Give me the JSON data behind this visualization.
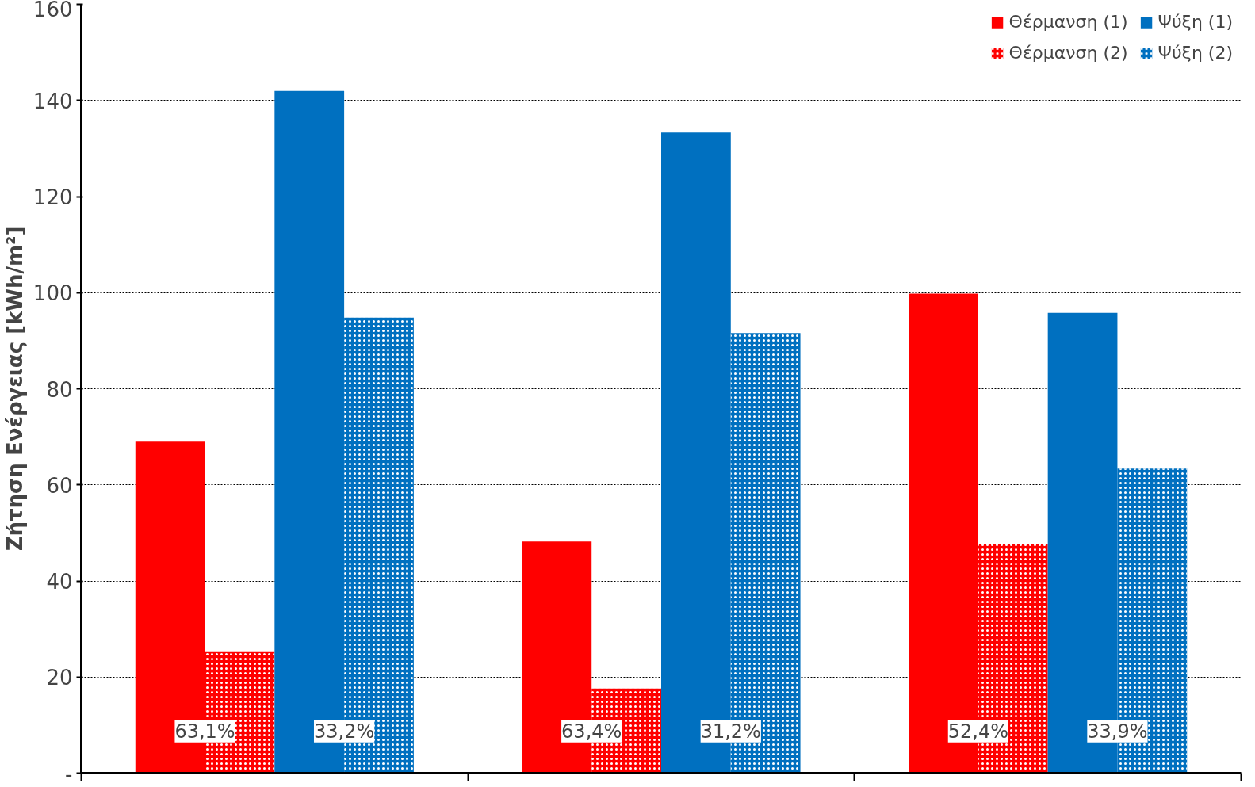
{
  "chart_data": {
    "type": "bar",
    "ylabel": "Ζήτηση Ενέργειας [kWh/m²]",
    "categories": [
      null,
      null,
      null
    ],
    "series": [
      {
        "name": "Θέρμανση (1)",
        "color": "#ff0000",
        "values": [
          69,
          48.2,
          99.8
        ]
      },
      {
        "name": "Θέρμανση (2)",
        "color": "#ff0000",
        "values": [
          25.2,
          17.6,
          47.6
        ]
      },
      {
        "name": "Ψύξη (1)",
        "color": "#0070c0",
        "values": [
          142,
          133.3,
          95.8
        ]
      },
      {
        "name": "Ψύξη (2)",
        "color": "#0070c0",
        "values": [
          94.8,
          91.6,
          63.4
        ]
      }
    ],
    "ylim": [
      0,
      160
    ],
    "yticks": [
      {
        "value": 0,
        "label": "-"
      },
      20,
      40,
      60,
      80,
      100,
      120,
      140,
      160
    ],
    "grid": "y",
    "legend": "top right",
    "tick_labels": "y",
    "annotations": [
      "63,1%",
      "33,2%",
      "63,4%",
      "31,2%",
      "52,4%",
      "33,9%"
    ]
  }
}
